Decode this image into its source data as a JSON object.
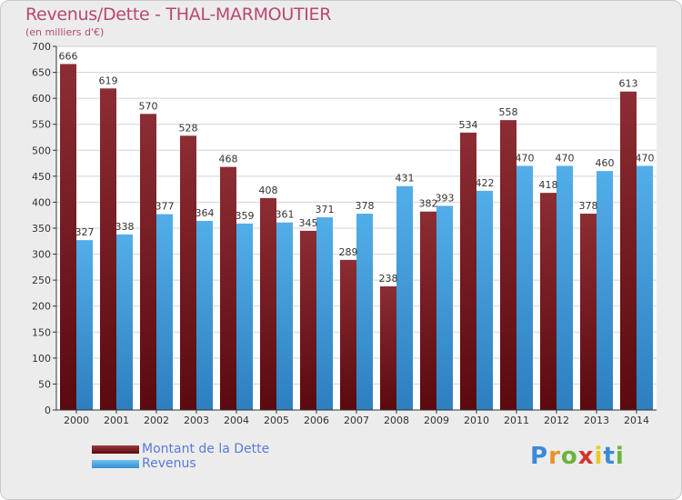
{
  "header": {
    "title": "Revenus/Dette - THAL-MARMOUTIER",
    "subtitle": "(en milliers d'€)"
  },
  "legend": {
    "items": [
      {
        "label": "Montant de la Dette",
        "color": "#6e1a1f"
      },
      {
        "label": "Revenus",
        "color": "#4aa3e0"
      }
    ]
  },
  "brand": {
    "logo_letters": [
      "P",
      "r",
      "o",
      "x",
      "i",
      "t",
      "i"
    ],
    "logo_colors": [
      "#3a8ad8",
      "#e8922a",
      "#6ab43c",
      "#d8332a",
      "#e8c92a",
      "#3a8ad8",
      "#6ab43c"
    ]
  },
  "chart_data": {
    "type": "bar",
    "categories": [
      "2000",
      "2001",
      "2002",
      "2003",
      "2004",
      "2005",
      "2006",
      "2007",
      "2008",
      "2009",
      "2010",
      "2011",
      "2012",
      "2013",
      "2014"
    ],
    "series": [
      {
        "name": "Montant de la Dette",
        "values": [
          666,
          619,
          570,
          528,
          468,
          408,
          345,
          289,
          238,
          382,
          534,
          558,
          418,
          378,
          613
        ]
      },
      {
        "name": "Revenus",
        "values": [
          327,
          338,
          377,
          364,
          359,
          361,
          371,
          378,
          431,
          393,
          422,
          470,
          470,
          460,
          470
        ]
      }
    ],
    "ylim": [
      0,
      700
    ],
    "yticks": [
      0,
      50,
      100,
      150,
      200,
      250,
      300,
      350,
      400,
      450,
      500,
      550,
      600,
      650,
      700
    ],
    "grid": true,
    "legend_position": "bottom-left"
  }
}
